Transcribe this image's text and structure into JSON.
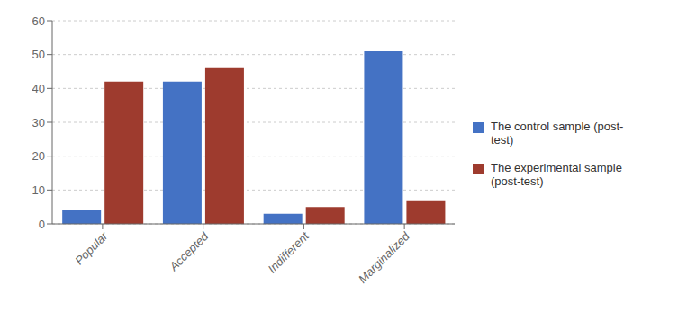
{
  "chart_data": {
    "type": "bar",
    "categories": [
      "Popular",
      "Accepted",
      "Indifferent",
      "Marginalized"
    ],
    "series": [
      {
        "name": "The control sample (post-\ntest)",
        "color": "#4472C4",
        "values": [
          4,
          42,
          3,
          51
        ]
      },
      {
        "name": "The experimental sample\n(post-test)",
        "color": "#9E3B2E",
        "values": [
          42,
          46,
          5,
          7
        ]
      }
    ],
    "ylim": [
      0,
      60
    ],
    "yticks": [
      0,
      10,
      20,
      30,
      40,
      50,
      60
    ],
    "grid": true,
    "legend": "right"
  }
}
